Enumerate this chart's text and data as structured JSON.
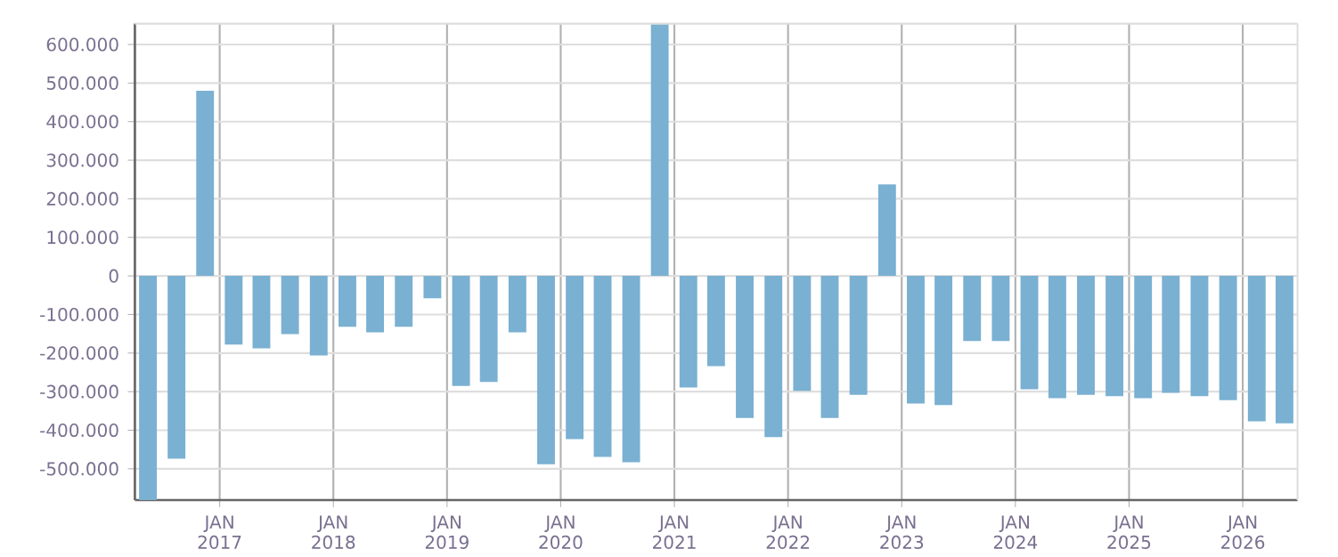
{
  "chart_data": {
    "type": "bar",
    "color": "#7ab0d2",
    "x": [
      "2016-05-15",
      "2016-08-15",
      "2016-11-15",
      "2017-02-15",
      "2017-05-15",
      "2017-08-15",
      "2017-11-15",
      "2018-02-15",
      "2018-05-15",
      "2018-08-15",
      "2018-11-15",
      "2019-02-15",
      "2019-05-15",
      "2019-08-15",
      "2019-11-15",
      "2020-02-15",
      "2020-05-15",
      "2020-08-15",
      "2020-11-15",
      "2021-02-15",
      "2021-05-15",
      "2021-08-15",
      "2021-11-15",
      "2022-02-15",
      "2022-05-15",
      "2022-08-15",
      "2022-11-15",
      "2023-02-15",
      "2023-05-15",
      "2023-08-15",
      "2023-11-15",
      "2024-02-15",
      "2024-05-15",
      "2024-08-15",
      "2024-11-15",
      "2025-02-15",
      "2025-05-15",
      "2025-08-15",
      "2025-11-15",
      "2026-02-15",
      "2026-05-15"
    ],
    "values": [
      -581000,
      -474000,
      480000,
      -178000,
      -188000,
      -151000,
      -206000,
      -132000,
      -146000,
      -132000,
      -58000,
      -285000,
      -275000,
      -146000,
      -488000,
      -423000,
      -469000,
      -483000,
      654000,
      -289000,
      -234000,
      -368000,
      -418000,
      -298000,
      -368000,
      -308000,
      237000,
      -331000,
      -335000,
      -169000,
      -169000,
      -294000,
      -317000,
      -308000,
      -312000,
      -317000,
      -303000,
      -312000,
      -322000,
      -377000,
      -382000
    ],
    "xlim": [
      "2016-04-03",
      "2026-06-26"
    ],
    "ylim": [
      -581000,
      654000
    ],
    "xticks": [
      {
        "value": "2017-01-01",
        "label": "JAN 2017"
      },
      {
        "value": "2018-01-01",
        "label": "JAN 2018"
      },
      {
        "value": "2019-01-01",
        "label": "JAN 2019"
      },
      {
        "value": "2020-01-01",
        "label": "JAN 2020"
      },
      {
        "value": "2021-01-01",
        "label": "JAN 2021"
      },
      {
        "value": "2022-01-01",
        "label": "JAN 2022"
      },
      {
        "value": "2023-01-01",
        "label": "JAN 2023"
      },
      {
        "value": "2024-01-01",
        "label": "JAN 2024"
      },
      {
        "value": "2025-01-01",
        "label": "JAN 2025"
      },
      {
        "value": "2026-01-01",
        "label": "JAN 2026"
      }
    ],
    "yticks": [
      {
        "value": -500000,
        "label": "-500.000"
      },
      {
        "value": -400000,
        "label": "-400.000"
      },
      {
        "value": -300000,
        "label": "-300.000"
      },
      {
        "value": -200000,
        "label": "-200.000"
      },
      {
        "value": -100000,
        "label": "-100.000"
      },
      0,
      {
        "value": 100000,
        "label": "100.000"
      },
      {
        "value": 200000,
        "label": "200.000"
      },
      {
        "value": 300000,
        "label": "300.000"
      },
      {
        "value": 400000,
        "label": "400.000"
      },
      {
        "value": 500000,
        "label": "500.000"
      },
      {
        "value": 600000,
        "label": "600.000"
      }
    ],
    "grid": true
  }
}
